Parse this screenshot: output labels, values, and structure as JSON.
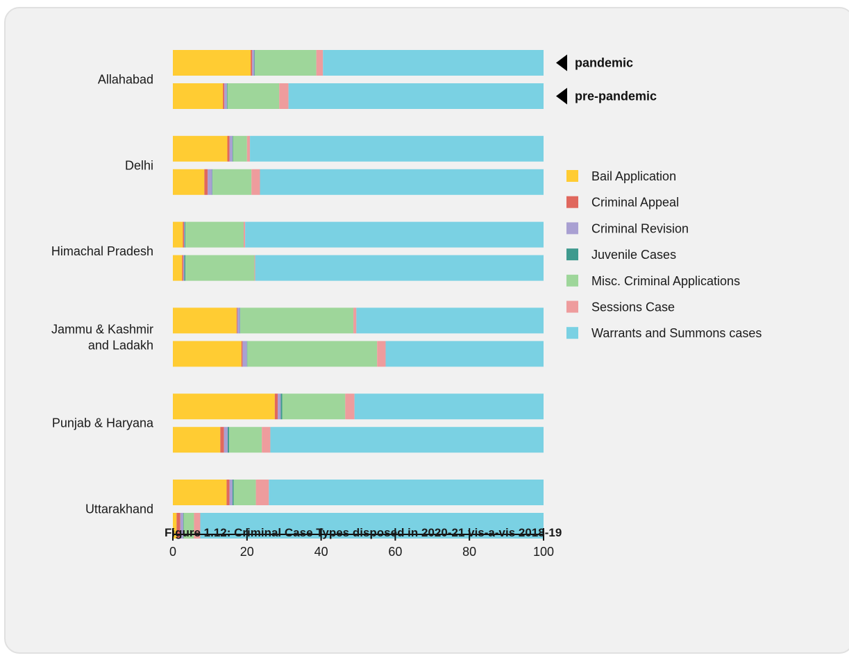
{
  "chart_data": {
    "type": "bar",
    "orientation": "horizontal",
    "stacked": true,
    "title": "Figure 1.12: Criminal Case Types disposed in 2020-21 vis-a-vis 2018-19",
    "categories": [
      "Allahabad",
      "Delhi",
      "Himachal Pradesh",
      "Jammu & Kashmir and Ladakh",
      "Punjab & Haryana",
      "Uttarakhand"
    ],
    "category_label_lines": [
      [
        "Allahabad"
      ],
      [
        "Delhi"
      ],
      [
        "Himachal Pradesh"
      ],
      [
        "Jammu & Kashmir",
        "and Ladakh"
      ],
      [
        "Punjab & Haryana"
      ],
      [
        "Uttarakhand"
      ]
    ],
    "bar_groups": [
      "pandemic",
      "pre-pandemic"
    ],
    "annotations": [
      "pandemic",
      "pre-pandemic"
    ],
    "xlim": [
      0,
      100
    ],
    "xticks": [
      0,
      20,
      40,
      60,
      80,
      100
    ],
    "grid": false,
    "legend_position": "right",
    "series": [
      {
        "name": "Bail Application",
        "color": "#FFCC33",
        "pandemic": [
          21.0,
          14.7,
          2.7,
          17.2,
          27.5,
          14.5
        ],
        "pre_pandemic": [
          13.5,
          8.5,
          2.5,
          18.5,
          12.8,
          1.0
        ]
      },
      {
        "name": "Criminal Appeal",
        "color": "#E0685E",
        "pandemic": [
          0.4,
          0.6,
          0.3,
          0.2,
          0.8,
          0.8
        ],
        "pre_pandemic": [
          0.4,
          0.9,
          0.3,
          0.3,
          1.0,
          1.0
        ]
      },
      {
        "name": "Criminal Revision",
        "color": "#A9A0D2",
        "pandemic": [
          0.6,
          0.8,
          0.2,
          0.7,
          0.8,
          0.8
        ],
        "pre_pandemic": [
          0.7,
          1.2,
          0.3,
          1.2,
          1.0,
          0.8
        ]
      },
      {
        "name": "Juvenile Cases",
        "color": "#3F9A8E",
        "pandemic": [
          0.1,
          0.1,
          0.2,
          0.1,
          0.4,
          0.3
        ],
        "pre_pandemic": [
          0.1,
          0.1,
          0.3,
          0.1,
          0.4,
          0.1
        ]
      },
      {
        "name": "Misc. Criminal Applications",
        "color": "#9ED69A",
        "pandemic": [
          16.6,
          3.8,
          15.7,
          30.5,
          17.0,
          6.0
        ],
        "pre_pandemic": [
          14.0,
          10.5,
          18.6,
          35.0,
          8.8,
          2.8
        ]
      },
      {
        "name": "Sessions Case",
        "color": "#EE9C9D",
        "pandemic": [
          1.8,
          0.8,
          0.4,
          0.8,
          2.5,
          3.5
        ],
        "pre_pandemic": [
          2.5,
          2.3,
          0.2,
          2.3,
          2.3,
          1.7
        ]
      },
      {
        "name": "Warrants and Summons cases",
        "color": "#7AD1E3",
        "pandemic": [
          59.5,
          79.2,
          80.5,
          50.5,
          51.0,
          74.1
        ],
        "pre_pandemic": [
          68.8,
          76.5,
          77.8,
          42.6,
          73.7,
          92.6
        ]
      }
    ]
  }
}
